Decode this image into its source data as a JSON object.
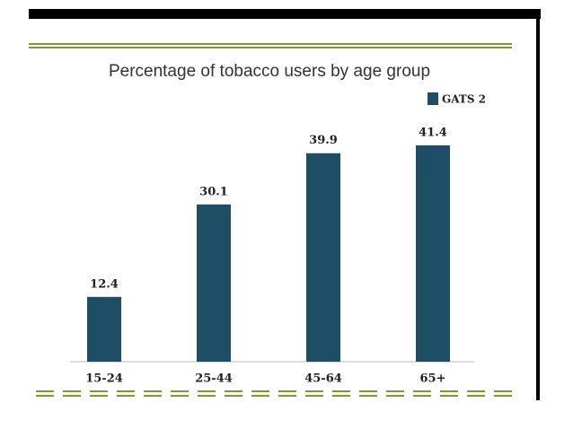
{
  "chart_data": {
    "type": "bar",
    "title": "Percentage of tobacco users by age group",
    "categories": [
      "15-24",
      "25-44",
      "45-64",
      "65+"
    ],
    "series": [
      {
        "name": "GATS 2",
        "color": "#1d4e66",
        "values": [
          12.4,
          30.1,
          39.9,
          41.4
        ]
      }
    ]
  }
}
